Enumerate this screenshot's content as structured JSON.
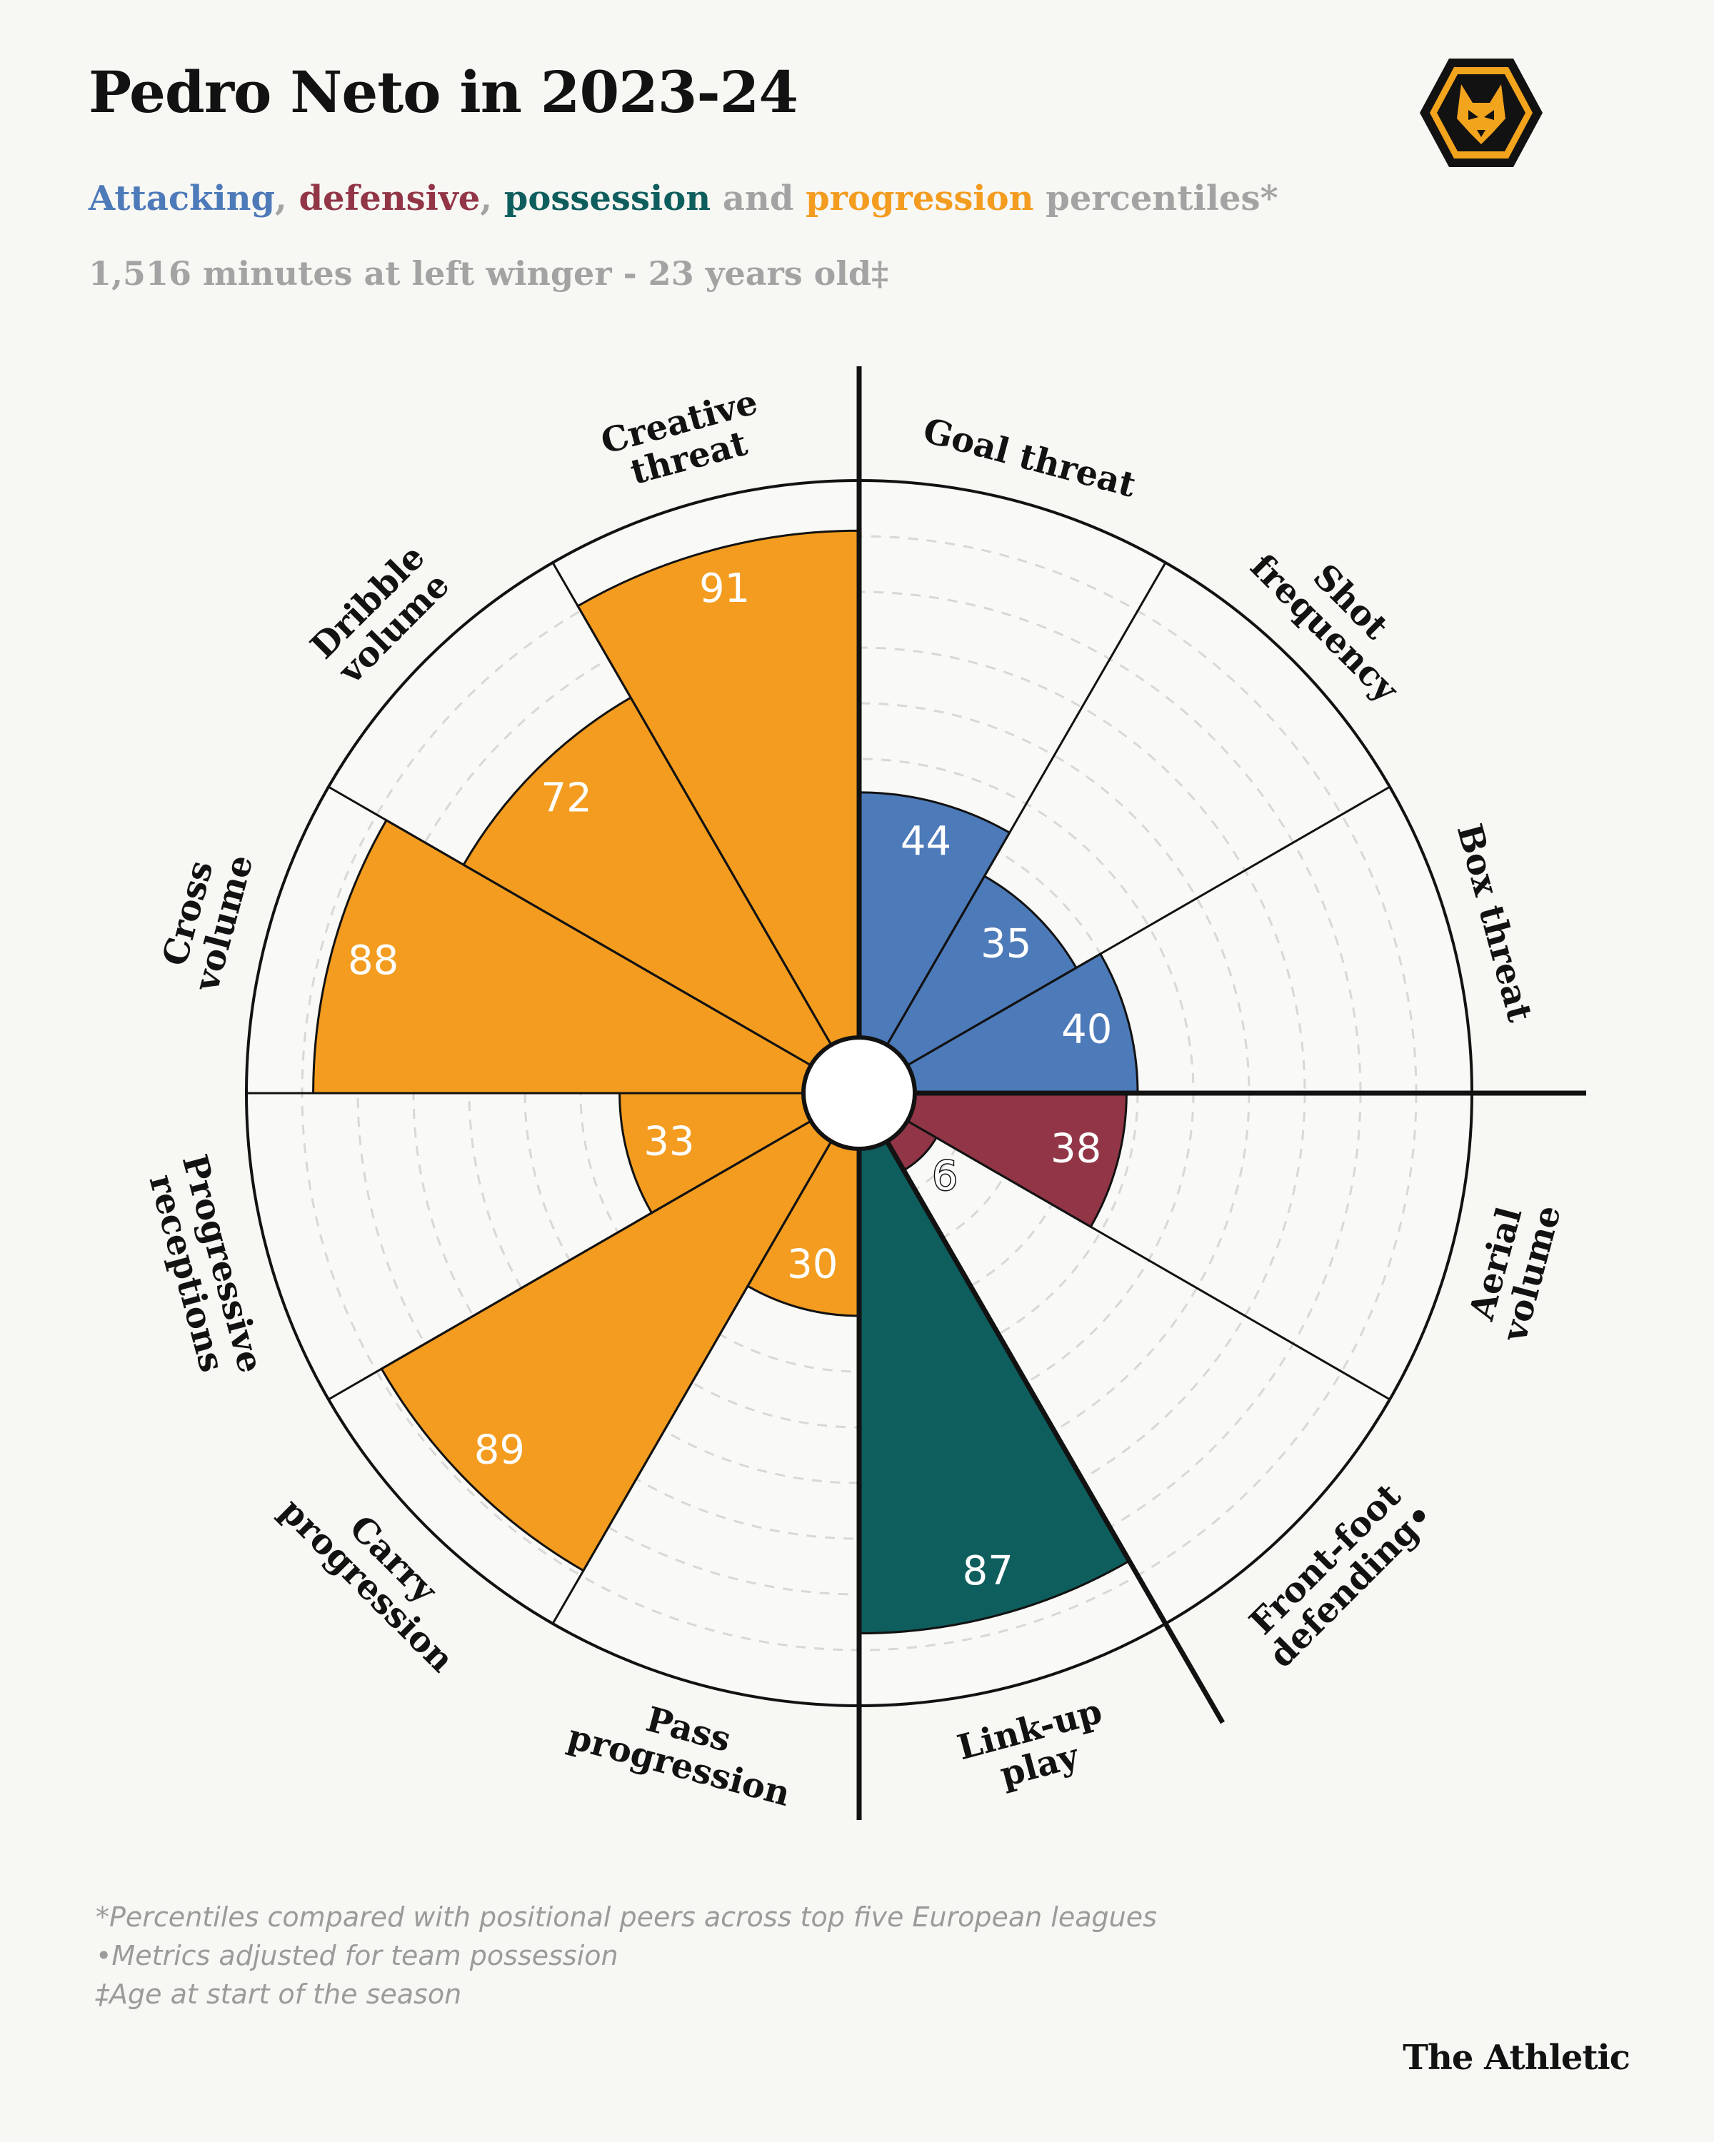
{
  "header": {
    "title": "Pedro Neto in 2023-24",
    "subtitle": {
      "attacking": "Attacking",
      "sep1": ", ",
      "defensive": "defensive",
      "sep2": ", ",
      "possession": "possession",
      "sep3": " and ",
      "progression": "progression",
      "tail": " percentiles*"
    },
    "minutes_line": "1,516 minutes at left winger - 23 years old‡",
    "club_badge": "wolves-badge-icon"
  },
  "footnotes": {
    "line1": "*Percentiles compared with positional peers across top five European leagues",
    "line2": "•Metrics adjusted for team possession",
    "line3": "‡Age at start of the season"
  },
  "brand": "The Athletic",
  "colors": {
    "attacking": "#4d7ab9",
    "defensive": "#923647",
    "possession": "#0f5e5e",
    "progression": "#f39c1f",
    "slice_background": "#ffffff",
    "muted_text": "#a3a3a3"
  },
  "chart_data": {
    "type": "polar_bar",
    "title": "Pedro Neto in 2023-24",
    "range": [
      0,
      100
    ],
    "grid": "dashed rings every 10 percentile",
    "series": [
      {
        "name": "Attacking",
        "color": "#4d7ab9"
      },
      {
        "name": "Defensive",
        "color": "#923647"
      },
      {
        "name": "Possession",
        "color": "#0f5e5e"
      },
      {
        "name": "Progression",
        "color": "#f39c1f"
      }
    ],
    "metrics": [
      {
        "label": "Goal threat",
        "label_lines": [
          "Goal threat"
        ],
        "value": 44,
        "group": "Attacking"
      },
      {
        "label": "Shot frequency",
        "label_lines": [
          "Shot",
          "frequency"
        ],
        "value": 35,
        "group": "Attacking"
      },
      {
        "label": "Box threat",
        "label_lines": [
          "Box threat"
        ],
        "value": 40,
        "group": "Attacking"
      },
      {
        "label": "Aerial volume",
        "label_lines": [
          "Aerial",
          "volume"
        ],
        "value": 38,
        "group": "Defensive"
      },
      {
        "label": "Front-foot defending•",
        "label_lines": [
          "Front-foot",
          "defending•"
        ],
        "value": 6,
        "group": "Defensive"
      },
      {
        "label": "Link-up play",
        "label_lines": [
          "Link-up",
          "play"
        ],
        "value": 87,
        "group": "Possession"
      },
      {
        "label": "Pass progression",
        "label_lines": [
          "Pass",
          "progression"
        ],
        "value": 30,
        "group": "Progression"
      },
      {
        "label": "Carry progression",
        "label_lines": [
          "Carry",
          "progression"
        ],
        "value": 89,
        "group": "Progression"
      },
      {
        "label": "Progressive receptions",
        "label_lines": [
          "Progressive",
          "receptions"
        ],
        "value": 33,
        "group": "Progression"
      },
      {
        "label": "Cross volume",
        "label_lines": [
          "Cross",
          "volume"
        ],
        "value": 88,
        "group": "Progression"
      },
      {
        "label": "Dribble volume",
        "label_lines": [
          "Dribble",
          "volume"
        ],
        "value": 72,
        "group": "Progression"
      },
      {
        "label": "Creative threat",
        "label_lines": [
          "Creative",
          "threat"
        ],
        "value": 91,
        "group": "Progression"
      }
    ]
  }
}
